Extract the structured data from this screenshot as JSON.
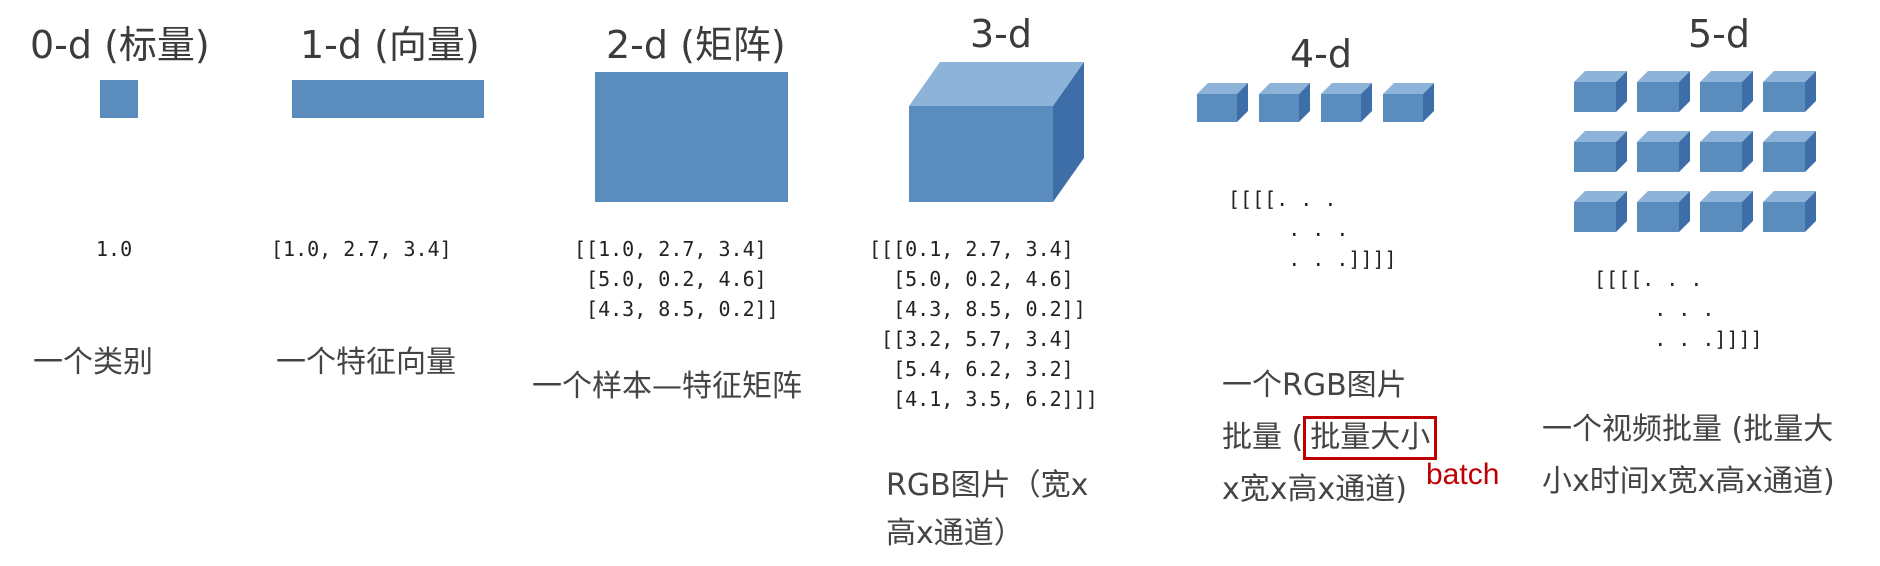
{
  "titles": [
    "0-d (标量)",
    "1-d (向量)",
    "2-d (矩阵)",
    "3-d",
    "4-d",
    "5-d"
  ],
  "code": {
    "d0": "1.0",
    "d1": "[1.0, 2.7, 3.4]",
    "d2": [
      "[[1.0, 2.7, 3.4]",
      " [5.0, 0.2, 4.6]",
      " [4.3, 8.5, 0.2]]"
    ],
    "d3": [
      "[[[0.1, 2.7, 3.4]",
      "  [5.0, 0.2, 4.6]",
      "  [4.3, 8.5, 0.2]]",
      " [[3.2, 5.7, 3.4]",
      "  [5.4, 6.2, 3.2]",
      "  [4.1, 3.5, 6.2]]]"
    ],
    "d4": [
      "[[[[. . .",
      "     . . .",
      "     . . .]]]]"
    ],
    "d5": [
      "[[[[. . .",
      "     . . .",
      "     . . .]]]]"
    ]
  },
  "descriptions": {
    "d0": "一个类别",
    "d1": "一个特征向量",
    "d2": "一个样本—特征矩阵",
    "d3": [
      "RGB图片（宽x",
      "高x通道）"
    ],
    "d4": {
      "line1": "一个RGB图片",
      "line2_prefix": "批量 (",
      "line2_highlight": "批量大小",
      "line3": "x宽x高x通道)",
      "batch_label": "batch"
    },
    "d5": [
      "一个视频批量 (批量大",
      "小x时间x宽x高x通道)"
    ]
  },
  "colors": {
    "shape_front": "#5b8cbe",
    "shape_top": "#8eb3d9",
    "shape_side": "#3e6ea8",
    "highlight": "#c00000"
  }
}
